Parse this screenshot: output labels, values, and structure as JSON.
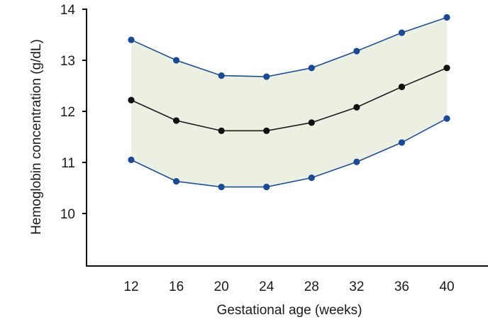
{
  "chart_data": {
    "type": "line",
    "title": "",
    "xlabel": "Gestational age (weeks)",
    "ylabel": "Hemoglobin concentration (g/dL)",
    "x": [
      12,
      16,
      20,
      24,
      28,
      32,
      36,
      40
    ],
    "x_tick_labels": [
      "12",
      "16",
      "20",
      "24",
      "28",
      "32",
      "36",
      "40"
    ],
    "y_tick_labels": [
      "10",
      "11",
      "12",
      "13",
      "14"
    ],
    "y_ticks": [
      10,
      11,
      12,
      13,
      14
    ],
    "xlim": [
      8.5,
      43.5
    ],
    "ylim": [
      9.0,
      14.0
    ],
    "grid": false,
    "legend": "none",
    "shaded_band": {
      "between": [
        "upper",
        "lower"
      ],
      "color": "#ecf0e2"
    },
    "series": [
      {
        "key": "upper",
        "values": [
          13.4,
          13.0,
          12.7,
          12.68,
          12.85,
          13.18,
          13.54,
          13.84
        ],
        "color": "#1f4e96",
        "marker_color": "#1a4a95"
      },
      {
        "key": "mean",
        "values": [
          12.22,
          11.82,
          11.62,
          11.62,
          11.78,
          12.08,
          12.48,
          12.85
        ],
        "color": "#1a1a1a",
        "marker_color": "#111111"
      },
      {
        "key": "lower",
        "values": [
          11.05,
          10.63,
          10.52,
          10.52,
          10.7,
          11.01,
          11.39,
          11.86
        ],
        "color": "#1f4e96",
        "marker_color": "#1a4a95"
      }
    ]
  }
}
